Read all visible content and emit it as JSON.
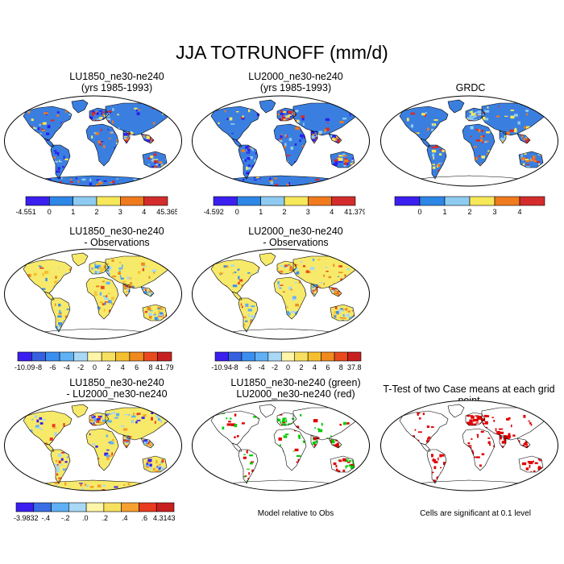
{
  "title": "JJA TOTRUNOFF (mm/d)",
  "colors": {
    "land_blue": "#3a7fe0",
    "ocean": "#ffffff",
    "outline": "#000000",
    "diff_yellow": "#f7ea6a",
    "diff_lightblue": "#9fd0f0",
    "ttest_red": "#e00000",
    "green": "#00cc00"
  },
  "panels": [
    {
      "id": "p1",
      "title_lines": [
        "LU1850_ne30-ne240",
        "(yrs 1985-1993)"
      ],
      "kind": "abs",
      "colorbar": {
        "colors": [
          "#3a1ff0",
          "#2e86e6",
          "#8fcbf0",
          "#f7e85a",
          "#f07a1e",
          "#d42c2c"
        ],
        "labels": [
          "-4.551",
          "0",
          "1",
          "2",
          "3",
          "4",
          "45.365"
        ]
      }
    },
    {
      "id": "p2",
      "title_lines": [
        "LU2000_ne30-ne240",
        "(yrs 1985-1993)"
      ],
      "kind": "abs",
      "colorbar": {
        "colors": [
          "#3a1ff0",
          "#2e86e6",
          "#8fcbf0",
          "#f7e85a",
          "#f07a1e",
          "#d42c2c"
        ],
        "labels": [
          "-4.592",
          "0",
          "1",
          "2",
          "3",
          "4",
          "41.379"
        ]
      }
    },
    {
      "id": "p3",
      "title_lines": [
        "GRDC"
      ],
      "kind": "obs",
      "colorbar": {
        "colors": [
          "#3a1ff0",
          "#2e86e6",
          "#8fcbf0",
          "#f7e85a",
          "#f07a1e",
          "#d42c2c"
        ],
        "labels": [
          "",
          "0",
          "1",
          "2",
          "3",
          "4",
          ""
        ]
      }
    },
    {
      "id": "p4",
      "title_lines": [
        "LU1850_ne30-ne240",
        "- Observations"
      ],
      "kind": "diff",
      "colorbar": {
        "colors": [
          "#3a1ff0",
          "#3560e0",
          "#3a8ef0",
          "#5fb0f5",
          "#a8d8f5",
          "#fff5a8",
          "#f7e060",
          "#f5c030",
          "#f08a1e",
          "#e84a1e",
          "#c82020"
        ],
        "labels": [
          "-10.09",
          "-8",
          "-6",
          "-4",
          "-2",
          "0",
          "2",
          "4",
          "6",
          "8",
          "41.79"
        ]
      }
    },
    {
      "id": "p5",
      "title_lines": [
        "LU2000_ne30-ne240",
        "- Observations"
      ],
      "kind": "diff",
      "colorbar": {
        "colors": [
          "#3a1ff0",
          "#3560e0",
          "#3a8ef0",
          "#5fb0f5",
          "#a8d8f5",
          "#fff5a8",
          "#f7e060",
          "#f5c030",
          "#f08a1e",
          "#e84a1e",
          "#c82020"
        ],
        "labels": [
          "-10.94",
          "-8",
          "-6",
          "-4",
          "-2",
          "0",
          "2",
          "4",
          "6",
          "8",
          "37.8"
        ]
      }
    },
    {
      "id": "p6",
      "title_lines": [
        "LU1850_ne30-ne240",
        "- LU2000_ne30-ne240"
      ],
      "kind": "diff2",
      "colorbar": {
        "colors": [
          "#3a1ff0",
          "#3a6ee6",
          "#5fb0f5",
          "#a8d8f5",
          "#fff5a8",
          "#f7e060",
          "#f5a030",
          "#e83a1e",
          "#c82020"
        ],
        "labels": [
          "-3.9832",
          "-.4",
          "-.2",
          ".0",
          ".2",
          ".4",
          ".6",
          "4.3143"
        ]
      }
    },
    {
      "id": "p7",
      "title_lines": [
        "LU1850_ne30-ne240 (green)",
        "LU2000_ne30-ne240 (red)"
      ],
      "kind": "redgreen",
      "note": "Model relative to Obs"
    },
    {
      "id": "p8",
      "title_lines": [
        "T-Test of two Case means at each grid point"
      ],
      "kind": "ttest",
      "note": "Cells are significant at 0.1 level"
    }
  ]
}
